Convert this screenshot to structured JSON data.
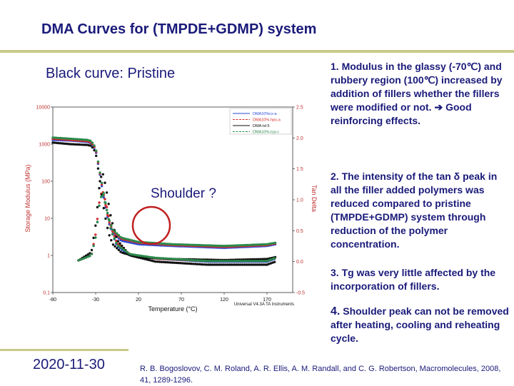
{
  "slide": {
    "title": "DMA Curves for (TMPDE+GDMP) system",
    "subtitle": "Black curve: Pristine",
    "date": "2020-11-30",
    "reference": "R. B. Bogoslovov, C. M. Roland, A. R. Ellis, A. M. Randall, and C. G. Robertson, Macromolecules, 2008, 41, 1289-1296.",
    "point1": "1. Modulus in the glassy (-70℃) and rubbery region (100℃) increased by addition of fillers whether the fillers were modified or not.",
    "point1_tail": "Good reinforcing effects.",
    "point2": "2. The intensity of the tan δ peak in all the filler added polymers was reduced compared to pristine (TMPDE+GDMP) system through reduction of the polymer concentration.",
    "point3": "3. Tg was very little affected by the incorporation of fillers.",
    "point4_num": "4.",
    "point4": "Shoulder peak can not be removed after heating, cooling and reheating cycle.",
    "arrow_icon": "right-arrow-icon"
  },
  "chart_data": {
    "type": "line",
    "xlabel": "Temperature (°C)",
    "ylabel": "Storage Modulus (MPa)",
    "y2label": "Tan Delta",
    "annotation": "Shoulder ?",
    "watermark": "Universal V4.3A TA Instruments",
    "xlim": [
      -80,
      200
    ],
    "ylim_log": [
      0.1,
      10000
    ],
    "y2lim": [
      -0.5,
      2.5
    ],
    "x_ticks": [
      "-80",
      "-30",
      "20",
      "70",
      "120",
      "170"
    ],
    "y_ticks": [
      "10000",
      "1000",
      "100",
      "10",
      "1",
      "0.1"
    ],
    "y2_ticks": [
      "2.5",
      "2.0",
      "1.5",
      "1.0",
      "0.5",
      "0.0",
      "-0.5"
    ],
    "legend": [
      "DMA10%cx-a",
      "DMA10%-hps-a",
      "DMA-td-5",
      "DMA10%-tcp-c"
    ],
    "series": [
      {
        "name": "DMA10%cx-a",
        "color": "#2b4bd6",
        "modulus": [
          [
            -80,
            1300
          ],
          [
            -60,
            1250
          ],
          [
            -40,
            1150
          ],
          [
            -35,
            1050
          ],
          [
            -30,
            700
          ],
          [
            -25,
            150
          ],
          [
            -20,
            30
          ],
          [
            -15,
            8
          ],
          [
            -10,
            4
          ],
          [
            0,
            2.5
          ],
          [
            20,
            2
          ],
          [
            60,
            1.8
          ],
          [
            120,
            1.6
          ],
          [
            170,
            1.8
          ],
          [
            180,
            2
          ]
        ],
        "tan": [
          [
            -50,
            0.02
          ],
          [
            -35,
            0.1
          ],
          [
            -30,
            0.4
          ],
          [
            -25,
            1.0
          ],
          [
            -22,
            1.1
          ],
          [
            -18,
            0.9
          ],
          [
            -12,
            0.5
          ],
          [
            -5,
            0.25
          ],
          [
            10,
            0.1
          ],
          [
            40,
            0.05
          ],
          [
            100,
            0.0
          ],
          [
            170,
            0.0
          ],
          [
            180,
            0.05
          ]
        ]
      },
      {
        "name": "DMA10%-hps-a",
        "color": "#d62b2b",
        "modulus": [
          [
            -80,
            1400
          ],
          [
            -60,
            1300
          ],
          [
            -40,
            1200
          ],
          [
            -35,
            1100
          ],
          [
            -30,
            750
          ],
          [
            -25,
            160
          ],
          [
            -20,
            35
          ],
          [
            -15,
            9
          ],
          [
            -10,
            4.5
          ],
          [
            0,
            2.8
          ],
          [
            20,
            2.2
          ],
          [
            60,
            1.9
          ],
          [
            120,
            1.7
          ],
          [
            170,
            1.9
          ],
          [
            180,
            2.1
          ]
        ],
        "tan": [
          [
            -50,
            0.02
          ],
          [
            -35,
            0.1
          ],
          [
            -30,
            0.45
          ],
          [
            -25,
            1.05
          ],
          [
            -22,
            1.15
          ],
          [
            -18,
            0.95
          ],
          [
            -12,
            0.55
          ],
          [
            -5,
            0.3
          ],
          [
            10,
            0.12
          ],
          [
            40,
            0.05
          ],
          [
            100,
            0.01
          ],
          [
            170,
            0.01
          ],
          [
            180,
            0.06
          ]
        ]
      },
      {
        "name": "DMA-td-5",
        "color": "#111111",
        "modulus": [
          [
            -80,
            1100
          ],
          [
            -60,
            1000
          ],
          [
            -40,
            950
          ],
          [
            -35,
            900
          ],
          [
            -30,
            600
          ],
          [
            -25,
            100
          ],
          [
            -20,
            15
          ],
          [
            -15,
            4
          ],
          [
            -10,
            2
          ],
          [
            0,
            1.2
          ],
          [
            20,
            0.9
          ],
          [
            60,
            0.8
          ],
          [
            120,
            0.75
          ],
          [
            170,
            0.8
          ],
          [
            180,
            0.9
          ]
        ],
        "tan": [
          [
            -50,
            0.02
          ],
          [
            -35,
            0.15
          ],
          [
            -30,
            0.6
          ],
          [
            -25,
            1.3
          ],
          [
            -22,
            1.45
          ],
          [
            -18,
            1.2
          ],
          [
            -12,
            0.7
          ],
          [
            -5,
            0.35
          ],
          [
            10,
            0.1
          ],
          [
            40,
            0.0
          ],
          [
            100,
            -0.05
          ],
          [
            170,
            -0.05
          ],
          [
            180,
            0.0
          ]
        ]
      },
      {
        "name": "DMA10%-tcp-c",
        "color": "#2a8a4a",
        "modulus": [
          [
            -80,
            1500
          ],
          [
            -60,
            1400
          ],
          [
            -40,
            1300
          ],
          [
            -35,
            1200
          ],
          [
            -30,
            800
          ],
          [
            -25,
            170
          ],
          [
            -20,
            40
          ],
          [
            -15,
            10
          ],
          [
            -10,
            5
          ],
          [
            0,
            3
          ],
          [
            20,
            2.3
          ],
          [
            60,
            2
          ],
          [
            120,
            1.8
          ],
          [
            170,
            2
          ],
          [
            180,
            2.2
          ]
        ],
        "tan": [
          [
            -50,
            0.02
          ],
          [
            -35,
            0.1
          ],
          [
            -30,
            0.4
          ],
          [
            -25,
            1.0
          ],
          [
            -22,
            1.1
          ],
          [
            -18,
            0.9
          ],
          [
            -12,
            0.5
          ],
          [
            -5,
            0.27
          ],
          [
            10,
            0.12
          ],
          [
            40,
            0.06
          ],
          [
            100,
            0.01
          ],
          [
            170,
            0.01
          ],
          [
            180,
            0.06
          ]
        ]
      }
    ]
  }
}
